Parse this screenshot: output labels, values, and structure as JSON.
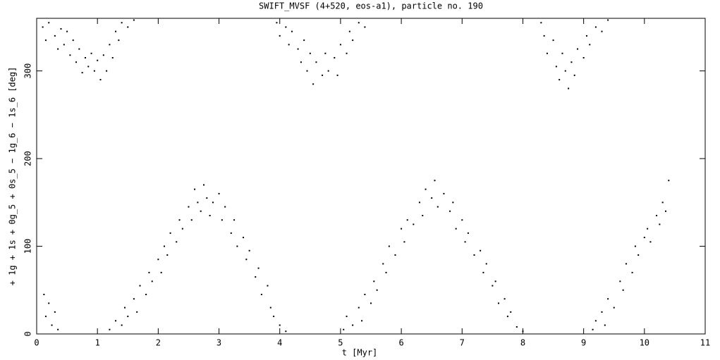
{
  "chart_data": {
    "type": "scatter",
    "title": "SWIFT_MVSF (4+520, eos-a1), particle no. 190",
    "x_label": "t [Myr]",
    "y_label": "+ 1g + 1s + 0g_5 + 0s_5 − 1g_6 − 1s_6 [deg]",
    "color": "#000000",
    "xlim": [
      0,
      11
    ],
    "ylim": [
      0,
      360
    ],
    "xticks": [
      0,
      1,
      2,
      3,
      4,
      5,
      6,
      7,
      8,
      9,
      10,
      11
    ],
    "yticks": [
      0,
      100,
      200,
      300
    ],
    "x": [
      0.1,
      0.15,
      0.2,
      0.3,
      0.35,
      0.4,
      0.45,
      0.5,
      0.55,
      0.6,
      0.65,
      0.7,
      0.75,
      0.8,
      0.85,
      0.9,
      0.95,
      1.0,
      1.05,
      1.1,
      1.15,
      1.2,
      1.25,
      1.3,
      1.35,
      1.4,
      1.5,
      1.6,
      0.12,
      0.15,
      0.2,
      0.25,
      0.3,
      0.35,
      1.2,
      1.3,
      1.4,
      1.45,
      1.5,
      1.6,
      1.65,
      1.7,
      1.8,
      1.85,
      1.9,
      2.0,
      2.05,
      2.1,
      2.15,
      2.2,
      2.3,
      2.35,
      2.4,
      2.5,
      2.55,
      2.6,
      2.65,
      2.7,
      2.75,
      2.8,
      2.85,
      2.9,
      3.0,
      3.05,
      3.1,
      3.2,
      3.25,
      3.3,
      3.4,
      3.45,
      3.5,
      3.6,
      3.65,
      3.7,
      3.8,
      3.85,
      3.9,
      4.0,
      4.1,
      3.95,
      4.0,
      4.1,
      4.15,
      4.2,
      4.3,
      4.35,
      4.4,
      4.45,
      4.5,
      4.55,
      4.6,
      4.7,
      4.75,
      4.8,
      4.9,
      4.95,
      5.0,
      5.1,
      5.15,
      5.2,
      5.3,
      5.4,
      5.05,
      5.1,
      5.2,
      5.3,
      5.35,
      5.4,
      5.5,
      5.55,
      5.6,
      5.7,
      5.75,
      5.8,
      5.9,
      6.0,
      6.05,
      6.1,
      6.2,
      6.3,
      6.35,
      6.4,
      6.5,
      6.55,
      6.6,
      6.7,
      6.8,
      6.85,
      6.9,
      7.0,
      7.05,
      7.1,
      7.2,
      7.3,
      7.35,
      7.4,
      7.5,
      7.55,
      7.6,
      7.7,
      7.75,
      7.8,
      7.9,
      8.0,
      8.3,
      8.35,
      8.4,
      8.5,
      8.55,
      8.6,
      8.65,
      8.7,
      8.75,
      8.8,
      8.85,
      8.9,
      9.0,
      9.05,
      9.1,
      9.2,
      9.3,
      9.4,
      9.15,
      9.2,
      9.3,
      9.35,
      9.4,
      9.5,
      9.6,
      9.65,
      9.7,
      9.8,
      9.85,
      9.9,
      10.0,
      10.05,
      10.1,
      10.2,
      10.25,
      10.3,
      10.35,
      10.4
    ],
    "values": [
      350,
      335,
      355,
      340,
      325,
      348,
      330,
      345,
      318,
      335,
      310,
      325,
      298,
      315,
      305,
      320,
      300,
      312,
      290,
      318,
      300,
      330,
      315,
      345,
      335,
      355,
      350,
      358,
      45,
      20,
      35,
      10,
      25,
      5,
      5,
      15,
      10,
      30,
      20,
      40,
      25,
      55,
      45,
      70,
      60,
      85,
      70,
      100,
      90,
      115,
      105,
      130,
      120,
      145,
      130,
      165,
      150,
      140,
      170,
      155,
      135,
      150,
      160,
      130,
      145,
      115,
      130,
      100,
      110,
      85,
      95,
      65,
      75,
      45,
      55,
      30,
      20,
      10,
      3,
      355,
      340,
      350,
      330,
      345,
      325,
      310,
      335,
      300,
      320,
      285,
      310,
      295,
      320,
      300,
      315,
      295,
      330,
      320,
      345,
      335,
      355,
      350,
      5,
      20,
      10,
      30,
      15,
      45,
      35,
      60,
      50,
      80,
      70,
      100,
      90,
      120,
      105,
      130,
      125,
      150,
      135,
      165,
      155,
      175,
      145,
      160,
      140,
      150,
      120,
      130,
      105,
      115,
      90,
      95,
      70,
      80,
      55,
      60,
      35,
      40,
      20,
      25,
      8,
      3,
      355,
      340,
      320,
      335,
      305,
      290,
      320,
      300,
      280,
      310,
      295,
      325,
      315,
      340,
      330,
      350,
      345,
      358,
      5,
      15,
      25,
      10,
      40,
      30,
      60,
      50,
      80,
      70,
      100,
      90,
      110,
      120,
      105,
      135,
      125,
      150,
      140,
      175
    ]
  }
}
